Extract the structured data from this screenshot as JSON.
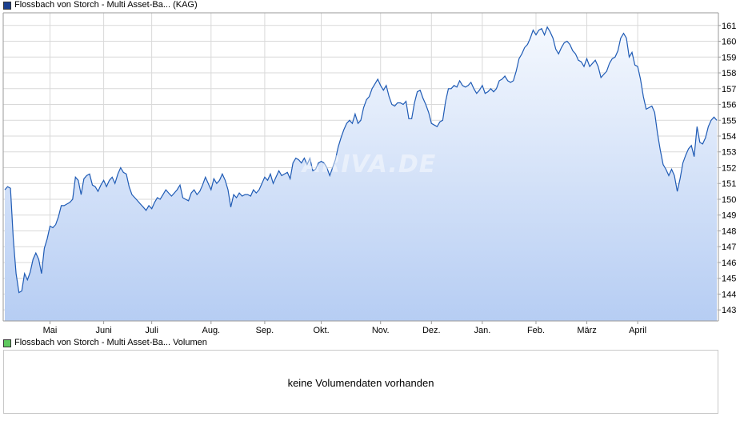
{
  "colors": {
    "line": "#1f5bb5",
    "area_top": "#f4f8fe",
    "area_bottom": "#b6cdf3",
    "grid": "#d9d9d9",
    "axis": "#9a9a9a",
    "legend_price_swatch": "#1a3f8f",
    "legend_volume_swatch": "#5ec85e"
  },
  "legend": {
    "price_label": "Flossbach von Storch - Multi Asset-Ba... (KAG)",
    "volume_label": "Flossbach von Storch - Multi Asset-Ba... Volumen"
  },
  "watermark": "ARIVA.DE",
  "volume": {
    "empty_text": "keine Volumendaten vorhanden"
  },
  "chart_data": {
    "type": "area",
    "x_axis": {
      "tick_labels": [
        "Mai",
        "Juni",
        "Juli",
        "Aug.",
        "Sep.",
        "Okt.",
        "Nov.",
        "Dez.",
        "Jan.",
        "Feb.",
        "März",
        "April"
      ],
      "tick_index": [
        16,
        35,
        52,
        73,
        92,
        112,
        133,
        151,
        169,
        188,
        206,
        224
      ]
    },
    "y_axis": {
      "position": "right",
      "ylim": [
        142.3,
        161.8
      ],
      "ticks": [
        143,
        144,
        145,
        146,
        147,
        148,
        149,
        150,
        151,
        152,
        153,
        154,
        155,
        156,
        157,
        158,
        159,
        160,
        161
      ]
    },
    "grid": true,
    "series": [
      {
        "values": [
          150.6,
          150.8,
          150.7,
          147.5,
          145.3,
          144.1,
          144.2,
          145.3,
          144.9,
          145.4,
          146.2,
          146.6,
          146.2,
          145.3,
          146.9,
          147.5,
          148.3,
          148.2,
          148.4,
          148.9,
          149.6,
          149.6,
          149.7,
          149.8,
          150.0,
          151.4,
          151.2,
          150.3,
          151.3,
          151.5,
          151.6,
          150.9,
          150.8,
          150.5,
          150.9,
          151.2,
          150.8,
          151.2,
          151.4,
          151.0,
          151.6,
          152.0,
          151.7,
          151.6,
          150.8,
          150.3,
          150.1,
          149.9,
          149.7,
          149.5,
          149.3,
          149.6,
          149.4,
          149.8,
          150.1,
          150.0,
          150.3,
          150.6,
          150.4,
          150.2,
          150.4,
          150.6,
          150.9,
          150.1,
          150.0,
          149.9,
          150.4,
          150.6,
          150.3,
          150.5,
          150.9,
          151.4,
          151.0,
          150.6,
          151.3,
          151.0,
          151.2,
          151.6,
          151.2,
          150.6,
          149.5,
          150.3,
          150.1,
          150.4,
          150.2,
          150.3,
          150.3,
          150.2,
          150.6,
          150.4,
          150.6,
          151.0,
          151.4,
          151.2,
          151.6,
          151.0,
          151.4,
          151.8,
          151.5,
          151.6,
          151.7,
          151.3,
          152.3,
          152.6,
          152.5,
          152.3,
          152.6,
          152.2,
          152.6,
          151.8,
          151.9,
          152.3,
          152.4,
          152.3,
          152.0,
          151.5,
          152.0,
          152.5,
          153.3,
          153.9,
          154.4,
          154.8,
          155.0,
          154.8,
          155.4,
          154.8,
          155.0,
          155.8,
          156.3,
          156.5,
          157.0,
          157.3,
          157.6,
          157.2,
          156.9,
          157.2,
          156.5,
          156.0,
          155.9,
          156.1,
          156.1,
          156.0,
          156.2,
          155.1,
          155.1,
          156.1,
          156.8,
          156.9,
          156.4,
          156.0,
          155.5,
          154.8,
          154.7,
          154.6,
          154.9,
          155.0,
          156.2,
          157.0,
          157.0,
          157.2,
          157.1,
          157.5,
          157.2,
          157.1,
          157.2,
          157.4,
          157.0,
          156.7,
          156.9,
          157.2,
          156.7,
          156.8,
          157.0,
          156.8,
          157.0,
          157.5,
          157.6,
          157.8,
          157.5,
          157.4,
          157.5,
          158.1,
          158.9,
          159.2,
          159.6,
          159.8,
          160.2,
          160.7,
          160.4,
          160.7,
          160.8,
          160.4,
          160.9,
          160.6,
          160.2,
          159.5,
          159.2,
          159.6,
          159.9,
          160.0,
          159.8,
          159.4,
          159.2,
          158.8,
          158.7,
          158.4,
          158.9,
          158.4,
          158.6,
          158.8,
          158.4,
          157.7,
          157.9,
          158.1,
          158.6,
          158.9,
          159.0,
          159.4,
          160.2,
          160.5,
          160.2,
          159.0,
          159.3,
          158.5,
          158.4,
          157.6,
          156.5,
          155.7,
          155.8,
          155.9,
          155.5,
          154.2,
          153.1,
          152.2,
          151.9,
          151.5,
          151.9,
          151.5,
          150.5,
          151.3,
          152.3,
          152.8,
          153.2,
          153.4,
          152.7,
          154.6,
          153.6,
          153.5,
          153.9,
          154.6,
          155.0,
          155.2,
          155.0
        ]
      }
    ]
  }
}
